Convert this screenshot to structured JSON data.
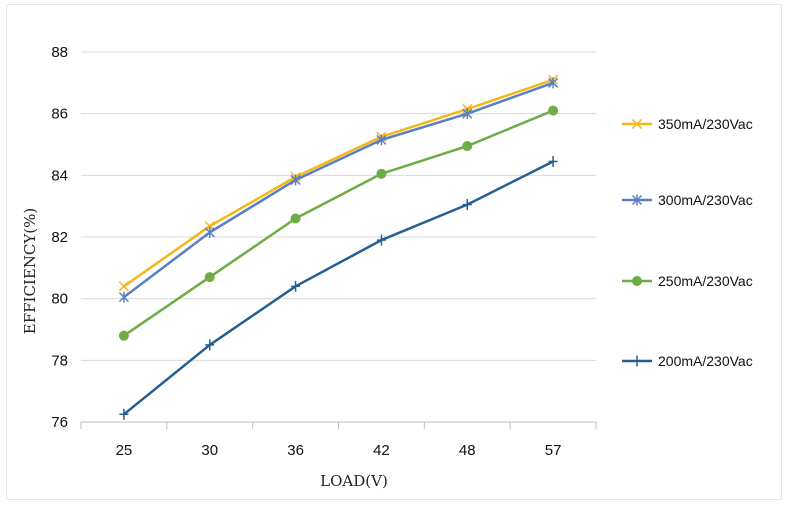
{
  "chart_data": {
    "type": "line",
    "title": "",
    "xlabel": "LOAD(V)",
    "ylabel": "EFFICIENCY(%)",
    "categories": [
      "25",
      "30",
      "36",
      "42",
      "48",
      "57"
    ],
    "ylim": [
      76,
      88
    ],
    "yticks": [
      76,
      78,
      80,
      82,
      84,
      86,
      88
    ],
    "grid": "horizontal",
    "legend_position": "right",
    "series": [
      {
        "name": "350mA/230Vac",
        "values": [
          80.4,
          82.35,
          83.95,
          85.25,
          86.15,
          87.1
        ],
        "color": "#f2b817",
        "marker": "x"
      },
      {
        "name": "300mA/230Vac",
        "values": [
          80.05,
          82.15,
          83.85,
          85.15,
          86.0,
          87.0
        ],
        "color": "#5b7fc4",
        "marker": "star"
      },
      {
        "name": "250mA/230Vac",
        "values": [
          78.8,
          80.7,
          82.6,
          84.05,
          84.95,
          86.1
        ],
        "color": "#6fac46",
        "marker": "circle"
      },
      {
        "name": "200mA/230Vac",
        "values": [
          76.25,
          78.5,
          80.4,
          81.9,
          83.05,
          84.45
        ],
        "color": "#255e91",
        "marker": "plus"
      }
    ]
  }
}
